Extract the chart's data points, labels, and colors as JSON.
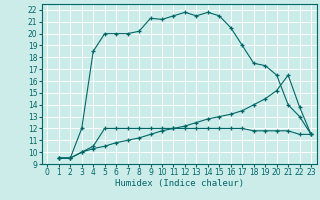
{
  "title": "",
  "xlabel": "Humidex (Indice chaleur)",
  "xlim": [
    -0.5,
    23.5
  ],
  "ylim": [
    9,
    22.5
  ],
  "xticks": [
    0,
    1,
    2,
    3,
    4,
    5,
    6,
    7,
    8,
    9,
    10,
    11,
    12,
    13,
    14,
    15,
    16,
    17,
    18,
    19,
    20,
    21,
    22,
    23
  ],
  "yticks": [
    9,
    10,
    11,
    12,
    13,
    14,
    15,
    16,
    17,
    18,
    19,
    20,
    21,
    22
  ],
  "bg_color": "#ccecea",
  "grid_color": "#ffffff",
  "line_color": "#006666",
  "line1_x": [
    1,
    2,
    3,
    4,
    5,
    6,
    7,
    8,
    9,
    10,
    11,
    12,
    13,
    14,
    15,
    16,
    17,
    18,
    19,
    20,
    21,
    22,
    23
  ],
  "line1_y": [
    9.5,
    9.5,
    12.0,
    18.5,
    20.0,
    20.0,
    20.0,
    20.2,
    21.3,
    21.2,
    21.5,
    21.8,
    21.5,
    21.8,
    21.5,
    20.5,
    19.0,
    17.5,
    17.3,
    16.5,
    14.0,
    13.0,
    11.5
  ],
  "line2_x": [
    1,
    2,
    3,
    4,
    5,
    6,
    7,
    8,
    9,
    10,
    11,
    12,
    13,
    14,
    15,
    16,
    17,
    18,
    19,
    20,
    21,
    22,
    23
  ],
  "line2_y": [
    9.5,
    9.5,
    10.0,
    10.5,
    12.0,
    12.0,
    12.0,
    12.0,
    12.0,
    12.0,
    12.0,
    12.0,
    12.0,
    12.0,
    12.0,
    12.0,
    12.0,
    11.8,
    11.8,
    11.8,
    11.8,
    11.5,
    11.5
  ],
  "line3_x": [
    1,
    2,
    3,
    4,
    5,
    6,
    7,
    8,
    9,
    10,
    11,
    12,
    13,
    14,
    15,
    16,
    17,
    18,
    19,
    20,
    21,
    22,
    23
  ],
  "line3_y": [
    9.5,
    9.5,
    10.0,
    10.3,
    10.5,
    10.8,
    11.0,
    11.2,
    11.5,
    11.8,
    12.0,
    12.2,
    12.5,
    12.8,
    13.0,
    13.2,
    13.5,
    14.0,
    14.5,
    15.2,
    16.5,
    13.8,
    11.5
  ],
  "tick_fontsize": 5.5,
  "xlabel_fontsize": 6.5
}
